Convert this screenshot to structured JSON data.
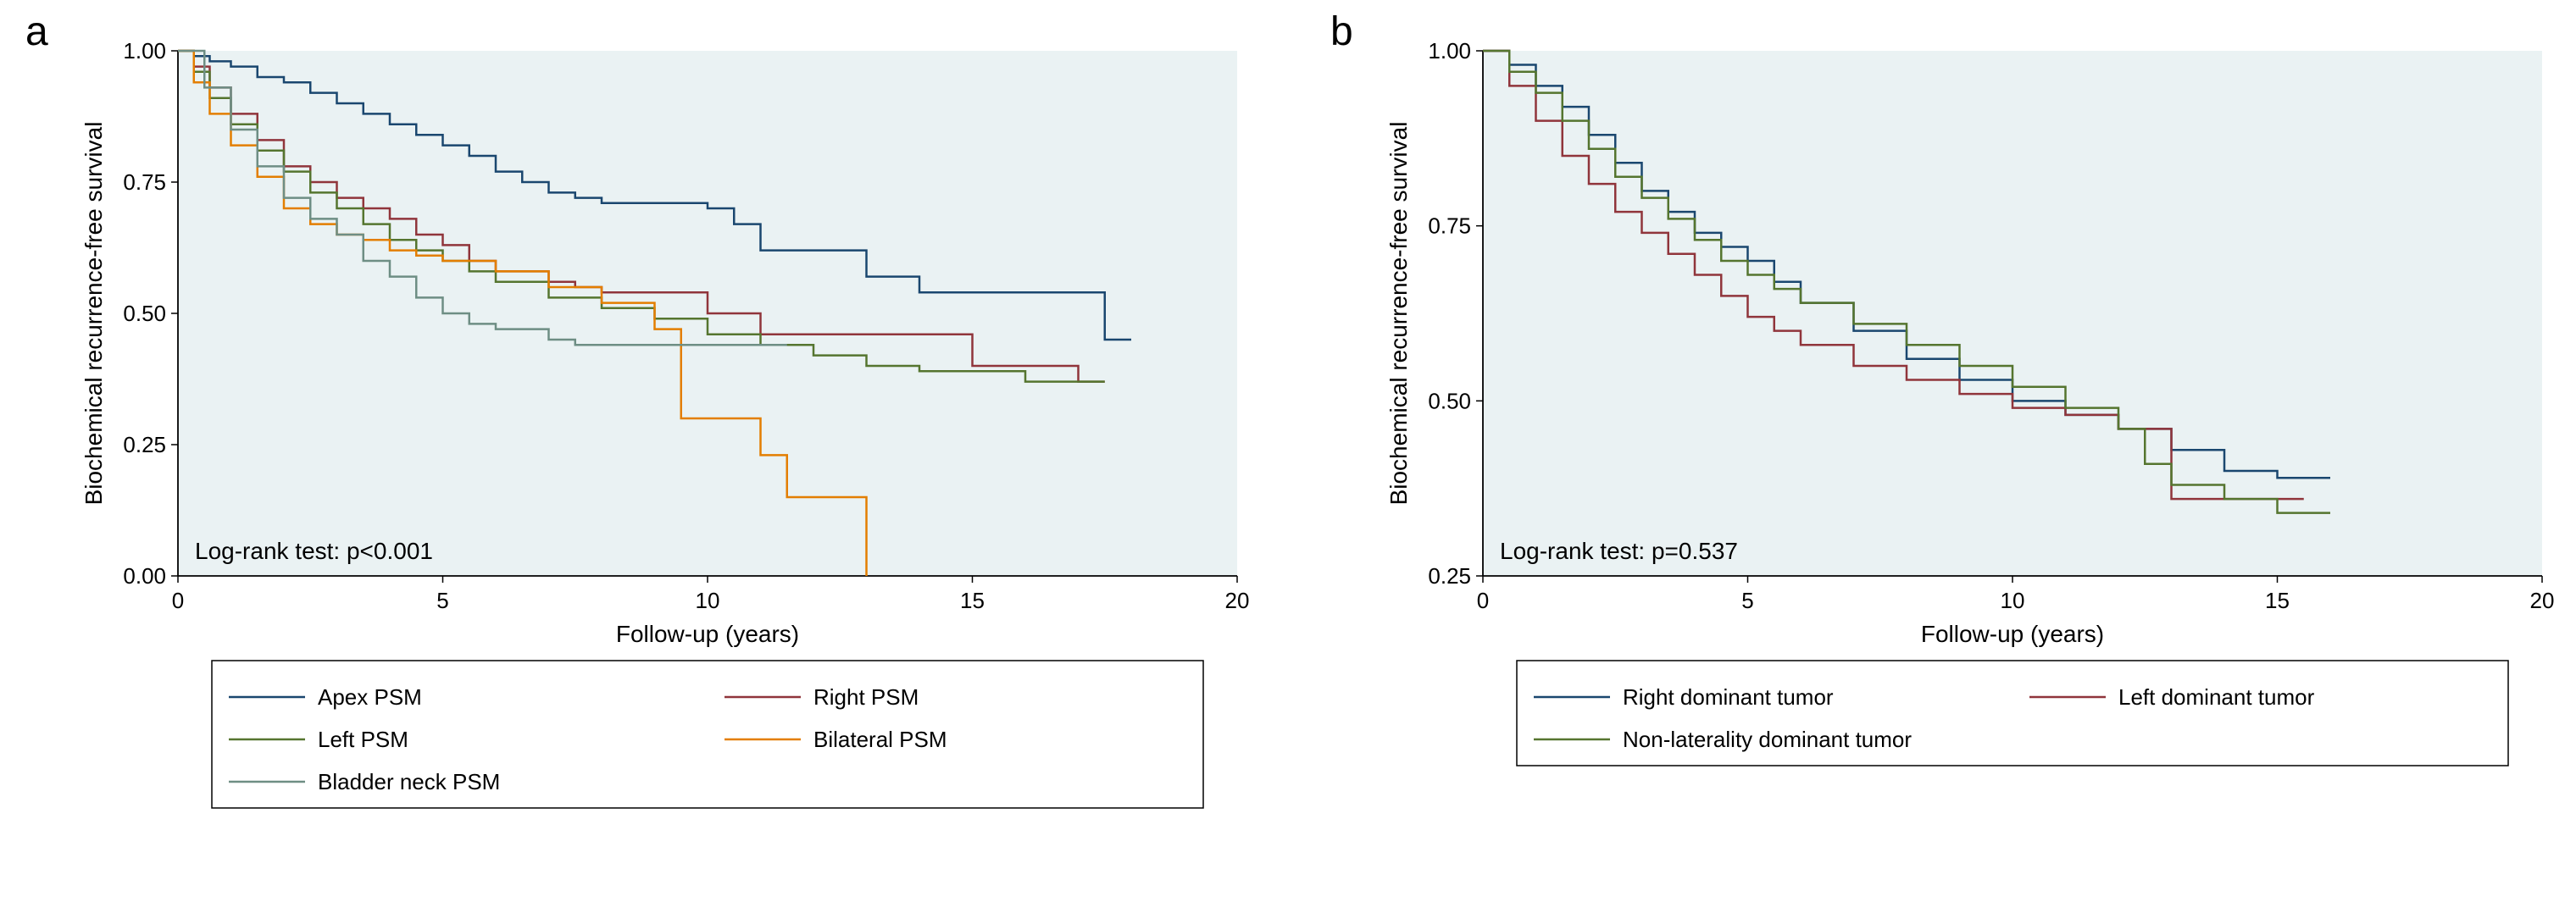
{
  "panel_a": {
    "label": "a",
    "type": "kaplan-meier",
    "xlim": [
      0,
      20
    ],
    "ylim": [
      0,
      1
    ],
    "xtick_step": 5,
    "ytick_step": 0.25,
    "xlabel": "Follow-up (years)",
    "ylabel": "Biochemical recurrence-free survival",
    "annotation": "Log-rank test: p<0.001",
    "plot_bg": "#eaf2f3",
    "axis_color": "#000000",
    "label_fontsize": 28,
    "tick_fontsize": 26,
    "ann_fontsize": 28,
    "line_width": 2.5,
    "series": [
      {
        "name": "Apex PSM",
        "color": "#1a476f",
        "points": [
          [
            0,
            1.0
          ],
          [
            0.3,
            0.99
          ],
          [
            0.6,
            0.98
          ],
          [
            1.0,
            0.97
          ],
          [
            1.5,
            0.95
          ],
          [
            2.0,
            0.94
          ],
          [
            2.5,
            0.92
          ],
          [
            3.0,
            0.9
          ],
          [
            3.5,
            0.88
          ],
          [
            4.0,
            0.86
          ],
          [
            4.5,
            0.84
          ],
          [
            5.0,
            0.82
          ],
          [
            5.5,
            0.8
          ],
          [
            6.0,
            0.77
          ],
          [
            6.5,
            0.75
          ],
          [
            7.0,
            0.73
          ],
          [
            7.5,
            0.72
          ],
          [
            8.0,
            0.71
          ],
          [
            9.0,
            0.71
          ],
          [
            10.0,
            0.7
          ],
          [
            10.5,
            0.67
          ],
          [
            11.0,
            0.62
          ],
          [
            12.0,
            0.62
          ],
          [
            13.0,
            0.57
          ],
          [
            14.0,
            0.54
          ],
          [
            15.0,
            0.54
          ],
          [
            17.5,
            0.45
          ],
          [
            18.0,
            0.45
          ]
        ]
      },
      {
        "name": "Right PSM",
        "color": "#90353b",
        "points": [
          [
            0,
            1.0
          ],
          [
            0.3,
            0.97
          ],
          [
            0.6,
            0.93
          ],
          [
            1.0,
            0.88
          ],
          [
            1.5,
            0.83
          ],
          [
            2.0,
            0.78
          ],
          [
            2.5,
            0.75
          ],
          [
            3.0,
            0.72
          ],
          [
            3.5,
            0.7
          ],
          [
            4.0,
            0.68
          ],
          [
            4.5,
            0.65
          ],
          [
            5.0,
            0.63
          ],
          [
            5.5,
            0.6
          ],
          [
            6.0,
            0.58
          ],
          [
            7.0,
            0.56
          ],
          [
            7.5,
            0.55
          ],
          [
            8.0,
            0.54
          ],
          [
            9.0,
            0.54
          ],
          [
            10.0,
            0.5
          ],
          [
            11.0,
            0.46
          ],
          [
            12.0,
            0.46
          ],
          [
            13.0,
            0.46
          ],
          [
            15.0,
            0.4
          ],
          [
            17.0,
            0.37
          ],
          [
            17.5,
            0.37
          ]
        ]
      },
      {
        "name": "Left PSM",
        "color": "#55752f",
        "points": [
          [
            0,
            1.0
          ],
          [
            0.3,
            0.96
          ],
          [
            0.6,
            0.91
          ],
          [
            1.0,
            0.86
          ],
          [
            1.5,
            0.81
          ],
          [
            2.0,
            0.77
          ],
          [
            2.5,
            0.73
          ],
          [
            3.0,
            0.7
          ],
          [
            3.5,
            0.67
          ],
          [
            4.0,
            0.64
          ],
          [
            4.5,
            0.62
          ],
          [
            5.0,
            0.6
          ],
          [
            5.5,
            0.58
          ],
          [
            6.0,
            0.56
          ],
          [
            7.0,
            0.53
          ],
          [
            8.0,
            0.51
          ],
          [
            9.0,
            0.49
          ],
          [
            10.0,
            0.46
          ],
          [
            11.0,
            0.44
          ],
          [
            12.0,
            0.42
          ],
          [
            13.0,
            0.4
          ],
          [
            14.0,
            0.39
          ],
          [
            16.0,
            0.37
          ],
          [
            17.5,
            0.37
          ]
        ]
      },
      {
        "name": "Bilateral PSM",
        "color": "#e37e00",
        "points": [
          [
            0,
            1.0
          ],
          [
            0.3,
            0.94
          ],
          [
            0.6,
            0.88
          ],
          [
            1.0,
            0.82
          ],
          [
            1.5,
            0.76
          ],
          [
            2.0,
            0.7
          ],
          [
            2.5,
            0.67
          ],
          [
            3.0,
            0.65
          ],
          [
            3.5,
            0.64
          ],
          [
            4.0,
            0.62
          ],
          [
            4.5,
            0.61
          ],
          [
            5.0,
            0.6
          ],
          [
            6.0,
            0.58
          ],
          [
            7.0,
            0.55
          ],
          [
            8.0,
            0.52
          ],
          [
            9.0,
            0.47
          ],
          [
            9.5,
            0.3
          ],
          [
            10.0,
            0.3
          ],
          [
            11.0,
            0.23
          ],
          [
            11.5,
            0.15
          ],
          [
            12.5,
            0.15
          ],
          [
            13.0,
            0.0
          ]
        ]
      },
      {
        "name": "Bladder neck PSM",
        "color": "#6e8e84",
        "points": [
          [
            0,
            1.0
          ],
          [
            0.5,
            0.93
          ],
          [
            1.0,
            0.85
          ],
          [
            1.5,
            0.78
          ],
          [
            2.0,
            0.72
          ],
          [
            2.5,
            0.68
          ],
          [
            3.0,
            0.65
          ],
          [
            3.5,
            0.6
          ],
          [
            4.0,
            0.57
          ],
          [
            4.5,
            0.53
          ],
          [
            5.0,
            0.5
          ],
          [
            5.5,
            0.48
          ],
          [
            6.0,
            0.47
          ],
          [
            7.0,
            0.45
          ],
          [
            7.5,
            0.44
          ],
          [
            8.0,
            0.44
          ],
          [
            9.0,
            0.44
          ],
          [
            10.0,
            0.44
          ],
          [
            11.5,
            0.44
          ]
        ]
      }
    ],
    "legend_box": true
  },
  "panel_b": {
    "label": "b",
    "type": "kaplan-meier",
    "xlim": [
      0,
      20
    ],
    "ylim": [
      0.25,
      1
    ],
    "xtick_step": 5,
    "ytick_step": 0.25,
    "xlabel": "Follow-up (years)",
    "ylabel": "Biochemical recurrence-free survival",
    "annotation": "Log-rank test: p=0.537",
    "plot_bg": "#eaf2f3",
    "axis_color": "#000000",
    "label_fontsize": 28,
    "tick_fontsize": 26,
    "ann_fontsize": 28,
    "line_width": 2.5,
    "series": [
      {
        "name": "Right dominant tumor",
        "color": "#1a476f",
        "points": [
          [
            0,
            1.0
          ],
          [
            0.5,
            0.98
          ],
          [
            1.0,
            0.95
          ],
          [
            1.5,
            0.92
          ],
          [
            2.0,
            0.88
          ],
          [
            2.5,
            0.84
          ],
          [
            3.0,
            0.8
          ],
          [
            3.5,
            0.77
          ],
          [
            4.0,
            0.74
          ],
          [
            4.5,
            0.72
          ],
          [
            5.0,
            0.7
          ],
          [
            5.5,
            0.67
          ],
          [
            6.0,
            0.64
          ],
          [
            7.0,
            0.6
          ],
          [
            8.0,
            0.56
          ],
          [
            9.0,
            0.53
          ],
          [
            10.0,
            0.5
          ],
          [
            11.0,
            0.48
          ],
          [
            12.0,
            0.46
          ],
          [
            13.0,
            0.43
          ],
          [
            14.0,
            0.4
          ],
          [
            15.0,
            0.39
          ],
          [
            16.0,
            0.39
          ]
        ]
      },
      {
        "name": "Left dominant tumor",
        "color": "#90353b",
        "points": [
          [
            0,
            1.0
          ],
          [
            0.5,
            0.95
          ],
          [
            1.0,
            0.9
          ],
          [
            1.5,
            0.85
          ],
          [
            2.0,
            0.81
          ],
          [
            2.5,
            0.77
          ],
          [
            3.0,
            0.74
          ],
          [
            3.5,
            0.71
          ],
          [
            4.0,
            0.68
          ],
          [
            4.5,
            0.65
          ],
          [
            5.0,
            0.62
          ],
          [
            5.5,
            0.6
          ],
          [
            6.0,
            0.58
          ],
          [
            7.0,
            0.55
          ],
          [
            8.0,
            0.53
          ],
          [
            9.0,
            0.51
          ],
          [
            10.0,
            0.49
          ],
          [
            11.0,
            0.48
          ],
          [
            12.0,
            0.46
          ],
          [
            13.0,
            0.36
          ],
          [
            14.0,
            0.36
          ],
          [
            15.5,
            0.36
          ]
        ]
      },
      {
        "name": "Non-laterality dominant tumor",
        "color": "#55752f",
        "points": [
          [
            0,
            1.0
          ],
          [
            0.5,
            0.97
          ],
          [
            1.0,
            0.94
          ],
          [
            1.5,
            0.9
          ],
          [
            2.0,
            0.86
          ],
          [
            2.5,
            0.82
          ],
          [
            3.0,
            0.79
          ],
          [
            3.5,
            0.76
          ],
          [
            4.0,
            0.73
          ],
          [
            4.5,
            0.7
          ],
          [
            5.0,
            0.68
          ],
          [
            5.5,
            0.66
          ],
          [
            6.0,
            0.64
          ],
          [
            7.0,
            0.61
          ],
          [
            8.0,
            0.58
          ],
          [
            9.0,
            0.55
          ],
          [
            10.0,
            0.52
          ],
          [
            11.0,
            0.49
          ],
          [
            12.0,
            0.46
          ],
          [
            12.5,
            0.41
          ],
          [
            13.0,
            0.38
          ],
          [
            14.0,
            0.36
          ],
          [
            15.0,
            0.34
          ],
          [
            16.0,
            0.34
          ]
        ]
      }
    ],
    "legend_box": true
  }
}
